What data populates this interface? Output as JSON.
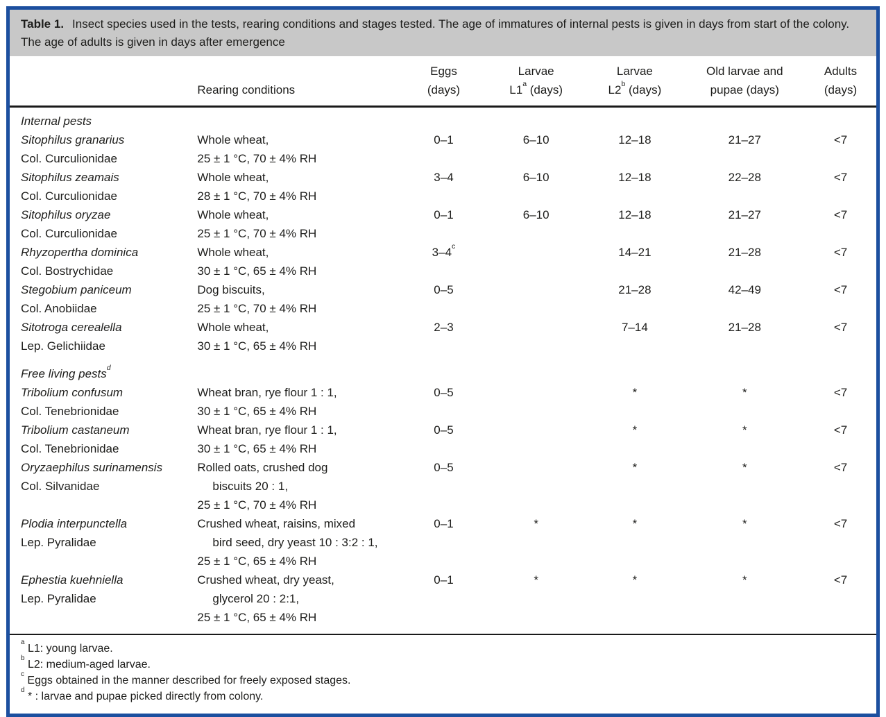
{
  "colors": {
    "frame_blue": "#1c4f9f",
    "caption_gray": "#c8c8c8",
    "rule_black": "#1a1a1a",
    "text": "#1d1d1b"
  },
  "caption": {
    "label": "Table 1.",
    "text": "Insect species used in the tests, rearing conditions and stages tested. The age of immatures of internal pests is given in days from start of the colony. The age of adults is given in days after emergence"
  },
  "table": {
    "header": {
      "rearing": "Rearing conditions",
      "eggs": {
        "line1": "Eggs",
        "line2_base": "",
        "sup": "",
        "line2_tail": "(days)"
      },
      "l1": {
        "line1": "Larvae",
        "line2_base": "L1",
        "sup": "a",
        "line2_tail": " (days)"
      },
      "l2": {
        "line1": "Larvae",
        "line2_base": "L2",
        "sup": "b",
        "line2_tail": " (days)"
      },
      "old": {
        "line1": "Old larvae and",
        "line2_base": "",
        "sup": "",
        "line2_tail": "pupae (days)"
      },
      "adults": {
        "line1": "Adults",
        "line2_base": "",
        "sup": "",
        "line2_tail": "(days)"
      }
    },
    "value_keys": [
      "eggs",
      "larvae-l1",
      "larvae-l2",
      "old-larvae-pupae",
      "adults"
    ],
    "sections": [
      {
        "title": "Internal pests",
        "sup": "",
        "rows": [
          {
            "species": "Sitophilus granarius",
            "family": "Col. Curculionidae",
            "rearing": [
              {
                "t": "Whole wheat,",
                "ind": false
              },
              {
                "t": "25 ± 1 °C, 70 ± 4% RH",
                "ind": false
              }
            ],
            "values": [
              {
                "v": "0–1"
              },
              {
                "v": "6–10"
              },
              {
                "v": "12–18"
              },
              {
                "v": "21–27"
              },
              {
                "v": "<7"
              }
            ]
          },
          {
            "species": "Sitophilus zeamais",
            "family": "Col. Curculionidae",
            "rearing": [
              {
                "t": "Whole wheat,",
                "ind": false
              },
              {
                "t": "28 ± 1 °C, 70 ± 4% RH",
                "ind": false
              }
            ],
            "values": [
              {
                "v": "3–4"
              },
              {
                "v": "6–10"
              },
              {
                "v": "12–18"
              },
              {
                "v": "22–28"
              },
              {
                "v": "<7"
              }
            ]
          },
          {
            "species": "Sitophilus oryzae",
            "family": "Col. Curculionidae",
            "rearing": [
              {
                "t": "Whole wheat,",
                "ind": false
              },
              {
                "t": "25 ± 1 °C, 70 ± 4% RH",
                "ind": false
              }
            ],
            "values": [
              {
                "v": "0–1"
              },
              {
                "v": "6–10"
              },
              {
                "v": "12–18"
              },
              {
                "v": "21–27"
              },
              {
                "v": "<7"
              }
            ]
          },
          {
            "species": "Rhyzopertha dominica",
            "family": "Col. Bostrychidae",
            "rearing": [
              {
                "t": "Whole wheat,",
                "ind": false
              },
              {
                "t": "30 ± 1 °C, 65 ± 4% RH",
                "ind": false
              }
            ],
            "values": [
              {
                "v": "3–4",
                "sup": "c"
              },
              {
                "v": ""
              },
              {
                "v": "14–21"
              },
              {
                "v": "21–28"
              },
              {
                "v": "<7"
              }
            ]
          },
          {
            "species": "Stegobium paniceum",
            "family": "Col. Anobiidae",
            "rearing": [
              {
                "t": "Dog biscuits,",
                "ind": false
              },
              {
                "t": "25 ± 1 °C, 70 ± 4% RH",
                "ind": false
              }
            ],
            "values": [
              {
                "v": "0–5"
              },
              {
                "v": ""
              },
              {
                "v": "21–28"
              },
              {
                "v": "42–49"
              },
              {
                "v": "<7"
              }
            ]
          },
          {
            "species": "Sitotroga cerealella",
            "family": "Lep. Gelichiidae",
            "rearing": [
              {
                "t": "Whole wheat,",
                "ind": false
              },
              {
                "t": "30 ± 1 °C, 65 ± 4% RH",
                "ind": false
              }
            ],
            "values": [
              {
                "v": "2–3"
              },
              {
                "v": ""
              },
              {
                "v": "7–14"
              },
              {
                "v": "21–28"
              },
              {
                "v": "<7"
              }
            ]
          }
        ]
      },
      {
        "title": "Free living pests",
        "sup": "d",
        "rows": [
          {
            "species": "Tribolium confusum",
            "family": "Col. Tenebrionidae",
            "rearing": [
              {
                "t": "Wheat bran, rye flour 1 : 1,",
                "ind": false
              },
              {
                "t": "30 ± 1 °C, 65 ± 4% RH",
                "ind": false
              }
            ],
            "values": [
              {
                "v": "0–5"
              },
              {
                "v": ""
              },
              {
                "v": "*"
              },
              {
                "v": "*"
              },
              {
                "v": "<7"
              }
            ]
          },
          {
            "species": "Tribolium castaneum",
            "family": "Col. Tenebrionidae",
            "rearing": [
              {
                "t": "Wheat bran, rye flour 1 : 1,",
                "ind": false
              },
              {
                "t": "30 ± 1 °C, 65 ± 4% RH",
                "ind": false
              }
            ],
            "values": [
              {
                "v": "0–5"
              },
              {
                "v": ""
              },
              {
                "v": "*"
              },
              {
                "v": "*"
              },
              {
                "v": "<7"
              }
            ]
          },
          {
            "species": "Oryzaephilus surinamensis",
            "family": "Col. Silvanidae",
            "rearing": [
              {
                "t": "Rolled oats, crushed dog",
                "ind": false
              },
              {
                "t": "biscuits 20 : 1,",
                "ind": true
              },
              {
                "t": "25 ± 1 °C, 70 ± 4% RH",
                "ind": false
              }
            ],
            "values": [
              {
                "v": "0–5"
              },
              {
                "v": ""
              },
              {
                "v": "*"
              },
              {
                "v": "*"
              },
              {
                "v": "<7"
              }
            ]
          },
          {
            "species": "Plodia interpunctella",
            "family": "Lep. Pyralidae",
            "rearing": [
              {
                "t": "Crushed wheat, raisins, mixed",
                "ind": false
              },
              {
                "t": "bird seed, dry yeast 10 : 3:2 : 1,",
                "ind": true
              },
              {
                "t": "25 ± 1 °C, 65 ± 4% RH",
                "ind": false
              }
            ],
            "values": [
              {
                "v": "0–1"
              },
              {
                "v": "*"
              },
              {
                "v": "*"
              },
              {
                "v": "*"
              },
              {
                "v": "<7"
              }
            ]
          },
          {
            "species": "Ephestia kuehniella",
            "family": "Lep. Pyralidae",
            "rearing": [
              {
                "t": "Crushed wheat, dry yeast,",
                "ind": false
              },
              {
                "t": "glycerol 20 : 2:1,",
                "ind": true
              },
              {
                "t": "25 ± 1 °C, 65 ± 4% RH",
                "ind": false
              }
            ],
            "values": [
              {
                "v": "0–1"
              },
              {
                "v": "*"
              },
              {
                "v": "*"
              },
              {
                "v": "*"
              },
              {
                "v": "<7"
              }
            ]
          }
        ]
      }
    ]
  },
  "footnotes": [
    {
      "sup": "a",
      "text": "L1: young larvae."
    },
    {
      "sup": "b",
      "text": "L2: medium-aged larvae."
    },
    {
      "sup": "c",
      "text": "Eggs obtained in the manner described for freely exposed stages."
    },
    {
      "sup": "d",
      "text": "* : larvae and pupae picked directly from colony."
    }
  ]
}
